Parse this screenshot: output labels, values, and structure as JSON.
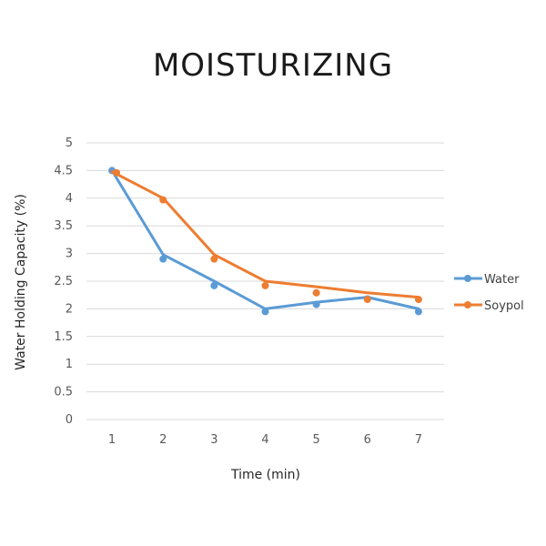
{
  "chart_data": {
    "type": "line",
    "title": "MOISTURIZING",
    "xlabel": "Time (min)",
    "ylabel": "Water Holding Capacity (%)",
    "categories": [
      "1",
      "2",
      "3",
      "4",
      "5",
      "6",
      "7"
    ],
    "ylim": [
      0,
      5
    ],
    "yticks": [
      "0",
      "0.5",
      "1",
      "1.5",
      "2",
      "2.5",
      "3",
      "3.5",
      "4",
      "4.5",
      "5"
    ],
    "grid": true,
    "legend": "right",
    "series": [
      {
        "name": "Water",
        "color": "#5b9bd5",
        "line": [
          4.5,
          2.98,
          2.5,
          2.0,
          2.12,
          2.21,
          2.0
        ],
        "markers": [
          4.5,
          2.9,
          2.42,
          1.95,
          2.08,
          2.18,
          1.95
        ]
      },
      {
        "name": "Soypol",
        "color": "#ed7d31",
        "line": [
          4.48,
          4.0,
          2.98,
          2.5,
          2.4,
          2.29,
          2.21
        ],
        "markers": [
          4.46,
          3.97,
          2.9,
          2.42,
          2.29,
          2.17,
          2.17
        ]
      }
    ]
  }
}
